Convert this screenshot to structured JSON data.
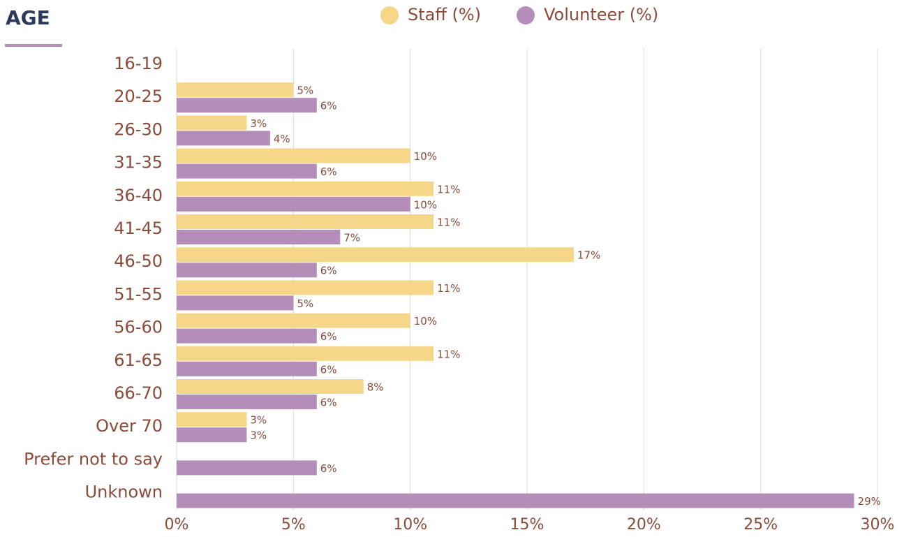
{
  "chart_data": {
    "type": "bar",
    "orientation": "horizontal",
    "title": "AGE",
    "categories": [
      "16-19",
      "20-25",
      "26-30",
      "31-35",
      "36-40",
      "41-45",
      "46-50",
      "51-55",
      "56-60",
      "61-65",
      "66-70",
      "Over 70",
      "Prefer not to say",
      "Unknown"
    ],
    "series": [
      {
        "name": "Staff (%)",
        "color": "#f6d688",
        "values": [
          null,
          5,
          3,
          10,
          11,
          11,
          17,
          11,
          10,
          11,
          8,
          3,
          null,
          null
        ],
        "value_labels": [
          null,
          "5%",
          "3%",
          "10%",
          "11%",
          "11%",
          "17%",
          "11%",
          "10%",
          "11%",
          "8%",
          "3%",
          null,
          null
        ]
      },
      {
        "name": "Volunteer (%)",
        "color": "#b48db8",
        "values": [
          null,
          6,
          4,
          6,
          10,
          7,
          6,
          5,
          6,
          6,
          6,
          3,
          6,
          29
        ],
        "value_labels": [
          null,
          "6%",
          "4%",
          "6%",
          "10%",
          "7%",
          "6%",
          "5%",
          "6%",
          "6%",
          "6%",
          "3%",
          "6%",
          "29%"
        ]
      }
    ],
    "xlim": [
      0,
      30
    ],
    "xticks": [
      {
        "value": 0,
        "label": "0%"
      },
      {
        "value": 5,
        "label": "5%"
      },
      {
        "value": 10,
        "label": "10%"
      },
      {
        "value": 15,
        "label": "15%"
      },
      {
        "value": 20,
        "label": "20%"
      },
      {
        "value": 25,
        "label": "25%"
      },
      {
        "value": 30,
        "label": "30%"
      }
    ],
    "grid": true,
    "legend": "top"
  }
}
